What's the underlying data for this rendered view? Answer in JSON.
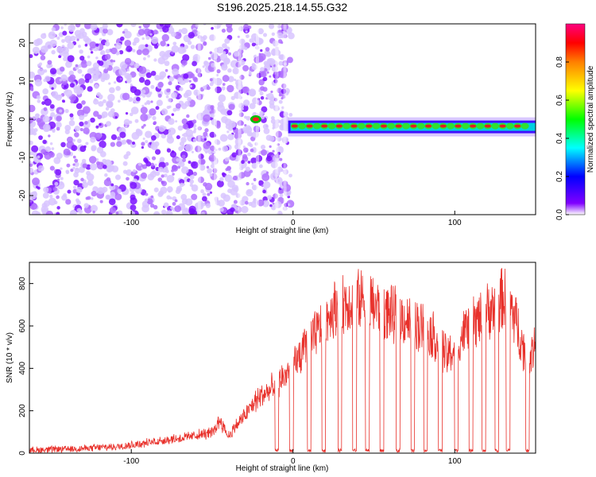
{
  "chart_data": [
    {
      "type": "heatmap",
      "title": "S196.2025.218.14.55.G32",
      "xlabel": "Height of straight line (km)",
      "ylabel": "Frequency (Hz)",
      "xlim": [
        -163,
        150
      ],
      "ylim": [
        -25,
        25
      ],
      "x_ticks": [
        -100,
        0,
        100
      ],
      "x_tick_labels": [
        "-100",
        "0",
        "100"
      ],
      "y_ticks": [
        -20,
        -10,
        0,
        10,
        20
      ],
      "y_tick_labels": [
        "-20",
        "-10",
        "0",
        "10",
        "20"
      ],
      "colorbar": {
        "label": "Normalized spectral amplitude",
        "range": [
          0,
          1
        ],
        "ticks": [
          0.0,
          0.2,
          0.4,
          0.6,
          0.8
        ],
        "tick_labels": [
          "0.0",
          "0.2",
          "0.4",
          "0.6",
          "0.8"
        ],
        "colormap": [
          "#ffffff",
          "#8000ff",
          "#0000ff",
          "#00ffff",
          "#00ff00",
          "#ffff00",
          "#ff8000",
          "#ff0000",
          "#ff0080"
        ]
      },
      "features": [
        {
          "description_value": "band",
          "x_start": -3,
          "x_end": 150,
          "freq_hz": -2
        },
        {
          "description_value": "peak",
          "x": -23,
          "freq_hz": 0
        }
      ]
    },
    {
      "type": "line",
      "xlabel": "Height of straight line (km)",
      "ylabel": "SNR (10 * v/v)",
      "xlim": [
        -163,
        150
      ],
      "ylim": [
        0,
        900
      ],
      "x_ticks": [
        -100,
        0,
        100
      ],
      "x_tick_labels": [
        "-100",
        "0",
        "100"
      ],
      "y_ticks": [
        0,
        200,
        400,
        600,
        800
      ],
      "y_tick_labels": [
        "0",
        "200",
        "400",
        "600",
        "800"
      ],
      "color": "#e8302a",
      "series": [
        {
          "x": [
            -163,
            -150,
            -140,
            -130,
            -120,
            -110,
            -100,
            -90,
            -80,
            -70,
            -60,
            -50,
            -45,
            -40,
            -35,
            -30,
            -25,
            -20,
            -15,
            -10,
            -5,
            0,
            5,
            10,
            15,
            20,
            25,
            30,
            35,
            40,
            45,
            50,
            55,
            60,
            65,
            70,
            75,
            80,
            85,
            90,
            95,
            100,
            105,
            110,
            115,
            120,
            125,
            130,
            135,
            140,
            145,
            150
          ],
          "y": [
            15,
            20,
            22,
            25,
            30,
            35,
            45,
            55,
            70,
            80,
            95,
            110,
            180,
            90,
            150,
            200,
            260,
            310,
            330,
            380,
            420,
            470,
            530,
            590,
            650,
            720,
            780,
            800,
            820,
            820,
            830,
            800,
            760,
            750,
            740,
            720,
            700,
            680,
            650,
            600,
            520,
            560,
            640,
            700,
            720,
            760,
            790,
            840,
            790,
            650,
            480,
            600
          ]
        }
      ],
      "dropouts_x": [
        -10,
        -1,
        10,
        19,
        29,
        38,
        46,
        55,
        65,
        74,
        82,
        91,
        101,
        110,
        118,
        126,
        133,
        145
      ]
    }
  ]
}
